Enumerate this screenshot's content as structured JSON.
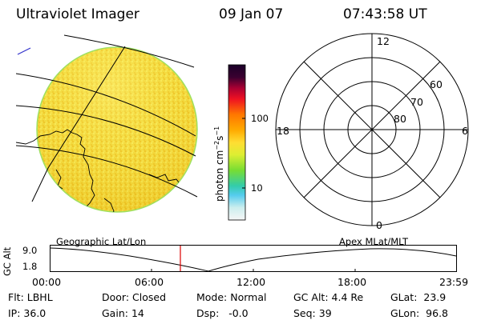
{
  "header": {
    "instrument": "Ultraviolet Imager",
    "date": "09 Jan 07",
    "time": "07:43:58 UT"
  },
  "colorbar": {
    "unit": "photon cm",
    "unit_sup1": "−2",
    "unit_mid": "s",
    "unit_sup2": "−1",
    "tick_high": "100",
    "tick_low": "10",
    "colors": [
      "#220033",
      "#990044",
      "#ee1122",
      "#ff7700",
      "#ffaa00",
      "#eedd33",
      "#ccee33",
      "#66dd33",
      "#33ccaa",
      "#55ccee",
      "#cceeee",
      "#f4f4f4"
    ]
  },
  "polar": {
    "mlt_top": "12",
    "mlt_bottom": "0",
    "mlt_left": "18",
    "mlt_right": "6",
    "lat_60": "60",
    "lat_70": "70",
    "lat_80": "80"
  },
  "labels": {
    "geo": "Geographic Lat/Lon",
    "apex": "Apex MLat/MLT"
  },
  "altplot": {
    "ylabel": "GC Alt",
    "ymax": "9.0",
    "ymin": "1.8",
    "x_ticks": [
      "00:00",
      "06:00",
      "12:00",
      "18:00",
      "23:59"
    ]
  },
  "status": {
    "flt_label": "Flt:",
    "flt": "LBHL",
    "ip_label": "IP:",
    "ip": "36.0",
    "door_label": "Door:",
    "door": "Closed",
    "gain_label": "Gain:",
    "gain": "14",
    "mode_label": "Mode:",
    "mode": "Normal",
    "dsp_label": "Dsp:",
    "dsp": "-0.0",
    "gcalt_label": "GC Alt:",
    "gcalt": "4.4 Re",
    "seq_label": "Seq:",
    "seq": "39",
    "glat_label": "GLat:",
    "glat": "23.9",
    "glon_label": "GLon:",
    "glon": "96.8"
  }
}
